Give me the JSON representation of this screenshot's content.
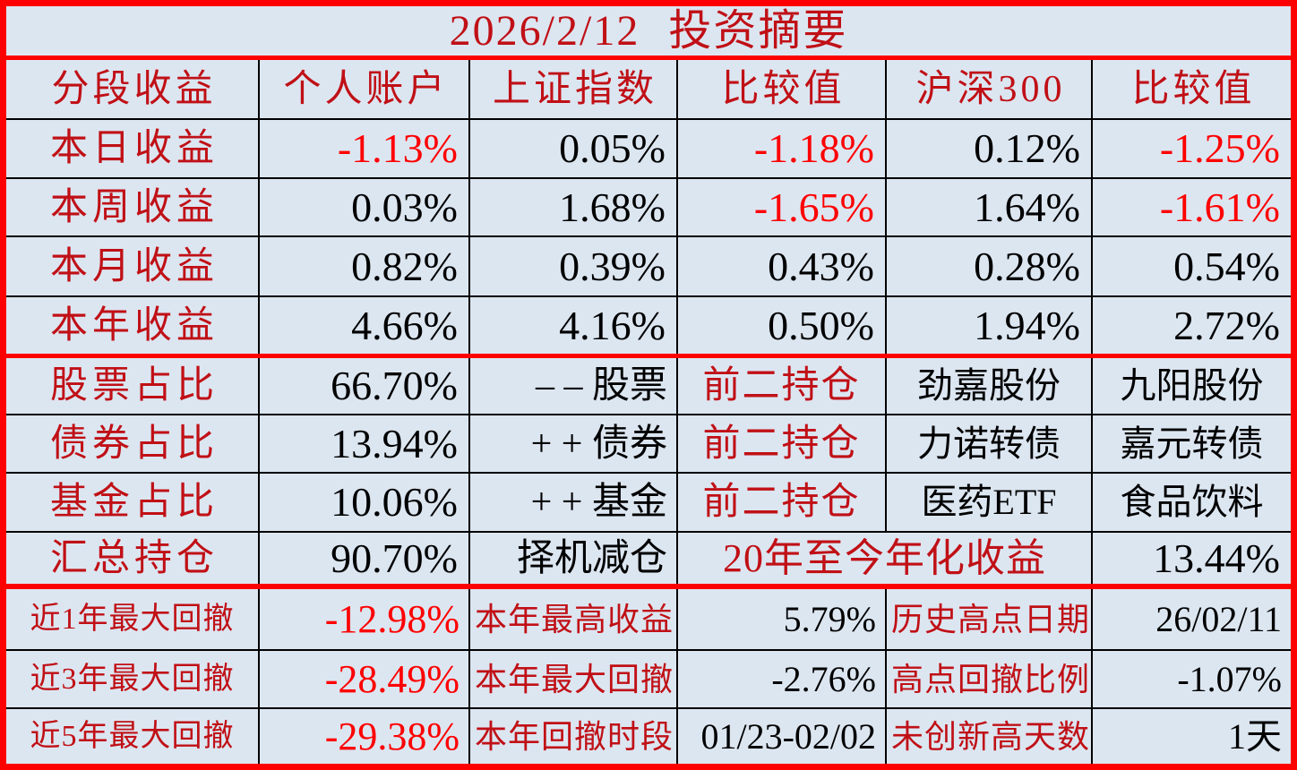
{
  "title": "2026/2/12 投资摘要",
  "colors": {
    "background": "#dce6f1",
    "dark_red_text": "#c01016",
    "bright_red_text": "#fe0000",
    "black_text": "#000000",
    "grid_line": "#000000",
    "separator_red": "#fe0000"
  },
  "header": {
    "cols": [
      "分段收益",
      "个人账户",
      "上证指数",
      "比较值",
      "沪深300",
      "比较值"
    ]
  },
  "returns_rows": [
    {
      "label": "本日收益",
      "personal": "-1.13%",
      "sse": "0.05%",
      "cmp1": "-1.18%",
      "hs300": "0.12%",
      "cmp2": "-1.25%"
    },
    {
      "label": "本周收益",
      "personal": "0.03%",
      "sse": "1.68%",
      "cmp1": "-1.65%",
      "hs300": "1.64%",
      "cmp2": "-1.61%"
    },
    {
      "label": "本月收益",
      "personal": "0.82%",
      "sse": "0.39%",
      "cmp1": "0.43%",
      "hs300": "0.28%",
      "cmp2": "0.54%"
    },
    {
      "label": "本年收益",
      "personal": "4.66%",
      "sse": "4.16%",
      "cmp1": "0.50%",
      "hs300": "1.94%",
      "cmp2": "2.72%"
    }
  ],
  "allocation_rows": [
    {
      "label": "股票占比",
      "value": "66.70%",
      "action": "– – 股票",
      "tag": "前二持仓",
      "top1": "劲嘉股份",
      "top2": "九阳股份"
    },
    {
      "label": "债券占比",
      "value": "13.94%",
      "action": "+ + 债券",
      "tag": "前二持仓",
      "top1": "力诺转债",
      "top2": "嘉元转债"
    },
    {
      "label": "基金占比",
      "value": "10.06%",
      "action": "+ + 基金",
      "tag": "前二持仓",
      "top1": "医药ETF",
      "top2": "食品饮料"
    }
  ],
  "summary_row": {
    "label": "汇总持仓",
    "value": "90.70%",
    "action": "择机减仓",
    "annualized_label": "20年至今年化收益",
    "annualized_value": "13.44%"
  },
  "drawdown_rows": [
    {
      "label": "近1年最大回撤",
      "value": "-12.98%",
      "label2": "本年最高收益",
      "value2": "5.79%",
      "label3": "历史高点日期",
      "value3": "26/02/11"
    },
    {
      "label": "近3年最大回撤",
      "value": "-28.49%",
      "label2": "本年最大回撤",
      "value2": "-2.76%",
      "label3": "高点回撤比例",
      "value3": "-1.07%"
    },
    {
      "label": "近5年最大回撤",
      "value": "-29.38%",
      "label2": "本年回撤时段",
      "value2": "01/23-02/02",
      "label3": "未创新高天数",
      "value3": "1天"
    }
  ]
}
